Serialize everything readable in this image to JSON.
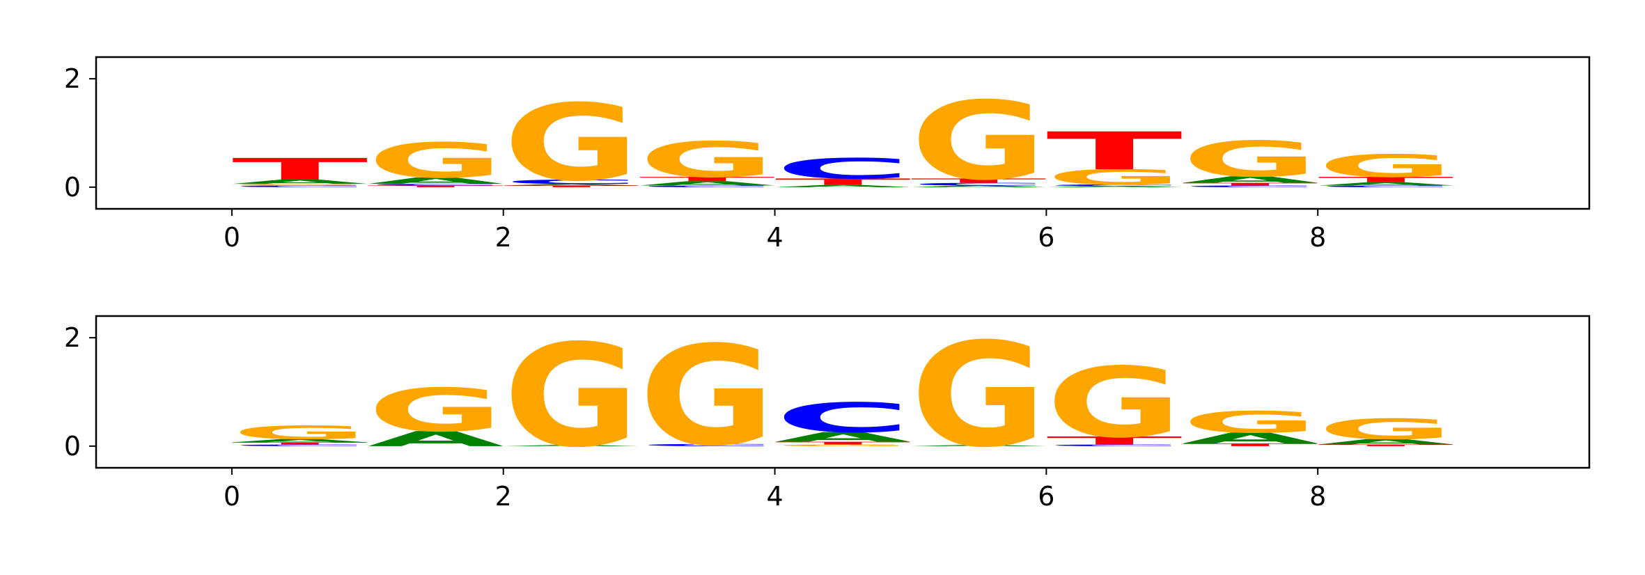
{
  "chart_data": [
    {
      "type": "sequence_logo",
      "title": "",
      "xlabel": "",
      "ylabel": "",
      "xlim": [
        -1,
        10
      ],
      "ylim": [
        -0.4,
        2.4
      ],
      "xticks": [
        0,
        2,
        4,
        6,
        8
      ],
      "yticks": [
        0,
        2
      ],
      "grid": false,
      "positions": [
        {
          "x": 0,
          "letters": [
            {
              "base": "C",
              "height": 0.03
            },
            {
              "base": "G",
              "height": 0.03
            },
            {
              "base": "A",
              "height": 0.08
            },
            {
              "base": "T",
              "height": 0.4
            }
          ]
        },
        {
          "x": 1,
          "letters": [
            {
              "base": "T",
              "height": 0.03
            },
            {
              "base": "C",
              "height": 0.03
            },
            {
              "base": "A",
              "height": 0.12
            },
            {
              "base": "G",
              "height": 0.65
            }
          ]
        },
        {
          "x": 2,
          "letters": [
            {
              "base": "T",
              "height": 0.03
            },
            {
              "base": "A",
              "height": 0.03
            },
            {
              "base": "C",
              "height": 0.08
            },
            {
              "base": "G",
              "height": 1.42
            }
          ]
        },
        {
          "x": 3,
          "letters": [
            {
              "base": "C",
              "height": 0.03
            },
            {
              "base": "A",
              "height": 0.08
            },
            {
              "base": "T",
              "height": 0.08
            },
            {
              "base": "G",
              "height": 0.66
            }
          ]
        },
        {
          "x": 4,
          "letters": [
            {
              "base": "A",
              "height": 0.04
            },
            {
              "base": "T",
              "height": 0.12
            },
            {
              "base": "C",
              "height": 0.38
            }
          ]
        },
        {
          "x": 5,
          "letters": [
            {
              "base": "A",
              "height": 0.03
            },
            {
              "base": "C",
              "height": 0.05
            },
            {
              "base": "T",
              "height": 0.08
            },
            {
              "base": "G",
              "height": 1.45
            }
          ]
        },
        {
          "x": 6,
          "letters": [
            {
              "base": "A",
              "height": 0.02
            },
            {
              "base": "C",
              "height": 0.03
            },
            {
              "base": "G",
              "height": 0.28
            },
            {
              "base": "T",
              "height": 0.7
            }
          ]
        },
        {
          "x": 7,
          "letters": [
            {
              "base": "C",
              "height": 0.03
            },
            {
              "base": "T",
              "height": 0.05
            },
            {
              "base": "A",
              "height": 0.12
            },
            {
              "base": "G",
              "height": 0.66
            }
          ]
        },
        {
          "x": 8,
          "letters": [
            {
              "base": "C",
              "height": 0.03
            },
            {
              "base": "A",
              "height": 0.06
            },
            {
              "base": "T",
              "height": 0.1
            },
            {
              "base": "G",
              "height": 0.42
            }
          ]
        }
      ]
    },
    {
      "type": "sequence_logo",
      "title": "",
      "xlabel": "",
      "ylabel": "",
      "xlim": [
        -1,
        10
      ],
      "ylim": [
        -0.4,
        2.4
      ],
      "xticks": [
        0,
        2,
        4,
        6,
        8
      ],
      "yticks": [
        0,
        2
      ],
      "grid": false,
      "positions": [
        {
          "x": 0,
          "letters": [
            {
              "base": "C",
              "height": 0.03
            },
            {
              "base": "T",
              "height": 0.04
            },
            {
              "base": "A",
              "height": 0.06
            },
            {
              "base": "G",
              "height": 0.25
            }
          ]
        },
        {
          "x": 1,
          "letters": [
            {
              "base": "A",
              "height": 0.28
            },
            {
              "base": "G",
              "height": 0.8
            }
          ]
        },
        {
          "x": 2,
          "letters": [
            {
              "base": "A",
              "height": 0.02
            },
            {
              "base": "G",
              "height": 1.9
            }
          ]
        },
        {
          "x": 3,
          "letters": [
            {
              "base": "C",
              "height": 0.04
            },
            {
              "base": "G",
              "height": 1.85
            }
          ]
        },
        {
          "x": 4,
          "letters": [
            {
              "base": "G",
              "height": 0.03
            },
            {
              "base": "T",
              "height": 0.05
            },
            {
              "base": "A",
              "height": 0.18
            },
            {
              "base": "C",
              "height": 0.55
            }
          ]
        },
        {
          "x": 5,
          "letters": [
            {
              "base": "A",
              "height": 0.02
            },
            {
              "base": "G",
              "height": 1.93
            }
          ]
        },
        {
          "x": 6,
          "letters": [
            {
              "base": "C",
              "height": 0.03
            },
            {
              "base": "T",
              "height": 0.15
            },
            {
              "base": "G",
              "height": 1.3
            }
          ]
        },
        {
          "x": 7,
          "letters": [
            {
              "base": "T",
              "height": 0.05
            },
            {
              "base": "A",
              "height": 0.2
            },
            {
              "base": "G",
              "height": 0.4
            }
          ]
        },
        {
          "x": 8,
          "letters": [
            {
              "base": "T",
              "height": 0.03
            },
            {
              "base": "A",
              "height": 0.1
            },
            {
              "base": "G",
              "height": 0.38
            }
          ]
        }
      ]
    }
  ],
  "colors": {
    "A": "#008000",
    "C": "#0000ff",
    "G": "#ffa500",
    "T": "#ff0000",
    "axis": "#000000"
  }
}
